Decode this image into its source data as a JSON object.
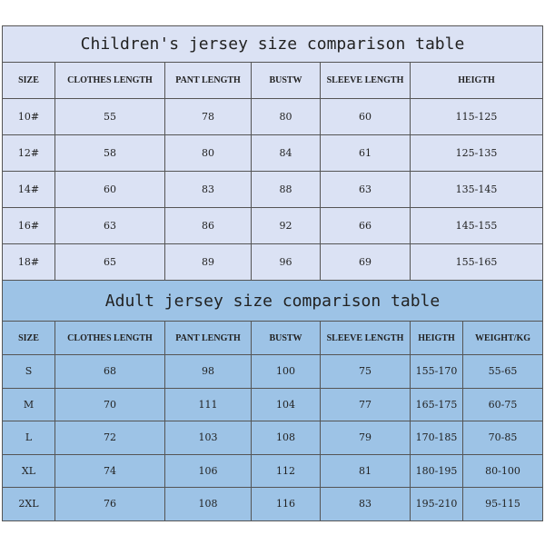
{
  "children": {
    "title": "Children's jersey size comparison table",
    "headers": [
      "SIZE",
      "CLOTHES LENGTH",
      "PANT LENGTH",
      "BUSTW",
      "SLEEVE LENGTH",
      "HEIGTH"
    ],
    "rows": [
      [
        "10#",
        "55",
        "78",
        "80",
        "60",
        "115-125"
      ],
      [
        "12#",
        "58",
        "80",
        "84",
        "61",
        "125-135"
      ],
      [
        "14#",
        "60",
        "83",
        "88",
        "63",
        "135-145"
      ],
      [
        "16#",
        "63",
        "86",
        "92",
        "66",
        "145-155"
      ],
      [
        "18#",
        "65",
        "89",
        "96",
        "69",
        "155-165"
      ]
    ]
  },
  "adult": {
    "title": "Adult jersey size comparison table",
    "headers": [
      "SIZE",
      "CLOTHES LENGTH",
      "PANT LENGTH",
      "BUSTW",
      "SLEEVE LENGTH",
      "HEIGTH",
      "WEIGHT/KG"
    ],
    "rows": [
      [
        "S",
        "68",
        "98",
        "100",
        "75",
        "155-170",
        "55-65"
      ],
      [
        "M",
        "70",
        "111",
        "104",
        "77",
        "165-175",
        "60-75"
      ],
      [
        "L",
        "72",
        "103",
        "108",
        "79",
        "170-185",
        "70-85"
      ],
      [
        "XL",
        "74",
        "106",
        "112",
        "81",
        "180-195",
        "80-100"
      ],
      [
        "2XL",
        "76",
        "108",
        "116",
        "83",
        "195-210",
        "95-115"
      ]
    ]
  },
  "colors": {
    "children_bg": "#dbe2f4",
    "adult_bg": "#9dc3e6"
  }
}
